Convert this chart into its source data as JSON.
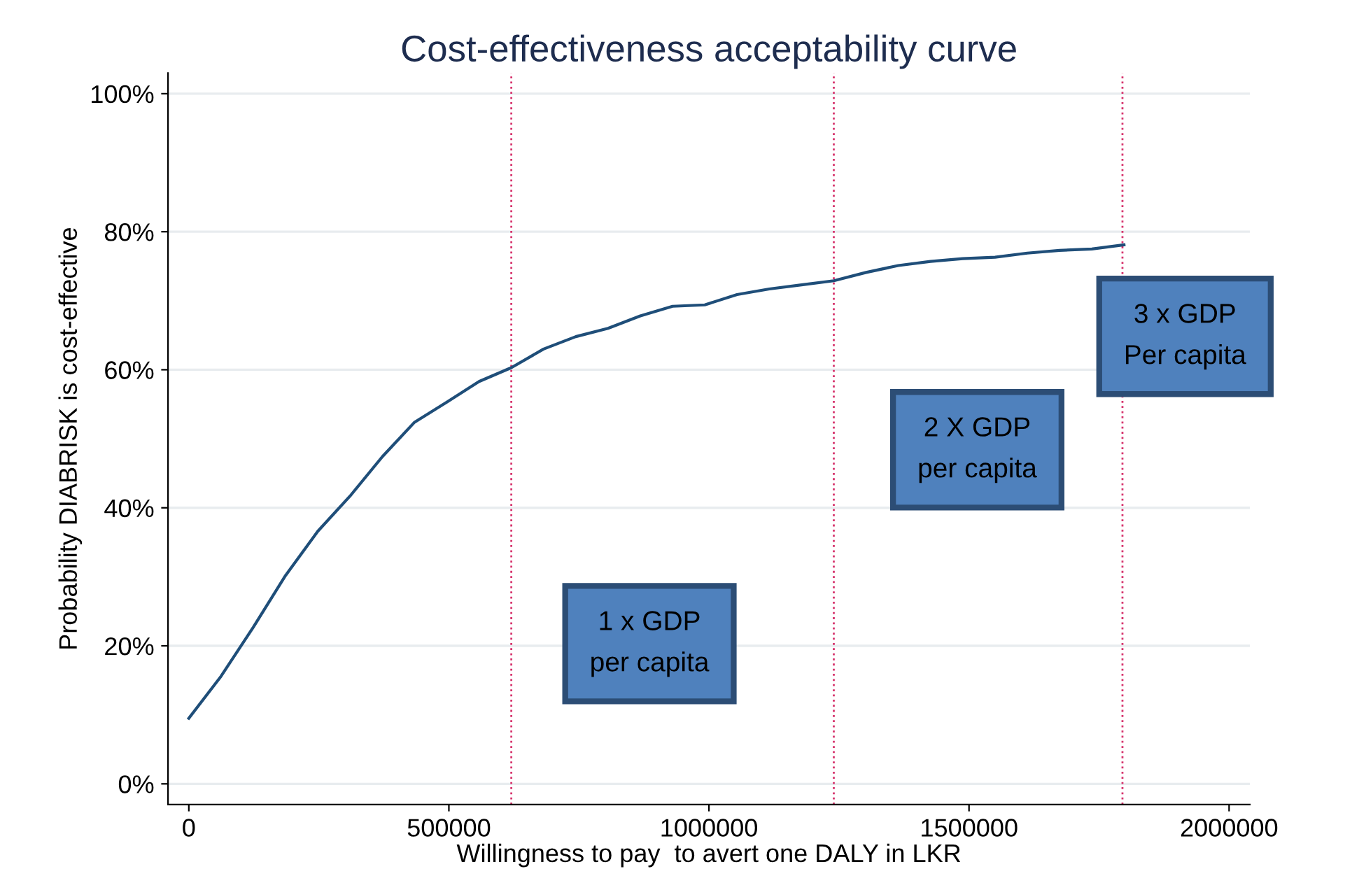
{
  "chart_data": {
    "type": "line",
    "title": "Cost-effectiveness acceptability curve",
    "xlabel": "Willingness to pay  to avert one DALY in LKR",
    "ylabel": "Probability DIABRISK is cost-effective",
    "x": [
      0,
      62000,
      124000,
      186000,
      248000,
      310000,
      372000,
      434000,
      496000,
      558000,
      620000,
      682000,
      744000,
      806000,
      868000,
      930000,
      992000,
      1054000,
      1116000,
      1178000,
      1240000,
      1302000,
      1364000,
      1426000,
      1488000,
      1550000,
      1612000,
      1674000,
      1736000,
      1798000
    ],
    "series": [
      {
        "color": "#1f4e79",
        "values": [
          9.5,
          15.6,
          22.7,
          30.2,
          36.6,
          41.7,
          47.4,
          52.4,
          55.3,
          58.3,
          60.3,
          63,
          64.8,
          66,
          67.8,
          69.2,
          69.4,
          70.9,
          71.7,
          72.3,
          72.9,
          74.1,
          75.1,
          75.7,
          76.1,
          76.3,
          76.9,
          77.3,
          77.5,
          78.1
        ]
      }
    ],
    "xlim": [
      -40000,
      2040000
    ],
    "ylim": [
      -3,
      103
    ],
    "xticks": [
      0,
      500000,
      1000000,
      1500000,
      2000000
    ],
    "yticks": [
      {
        "value": 0,
        "label": "0%"
      },
      {
        "value": 20,
        "label": "20%"
      },
      {
        "value": 40,
        "label": "40%"
      },
      {
        "value": 60,
        "label": "60%"
      },
      {
        "value": 80,
        "label": "80%"
      },
      {
        "value": 100,
        "label": "100%"
      }
    ],
    "grid": "y",
    "legend": false,
    "marker": "none",
    "line_style": "solid",
    "ref_lines": [
      {
        "axis": "x",
        "value": 620000,
        "color": "#d6336c",
        "line_style": "dotted"
      },
      {
        "axis": "x",
        "value": 1240000,
        "color": "#d6336c",
        "line_style": "dotted"
      },
      {
        "axis": "x",
        "value": 1795000,
        "color": "#d6336c",
        "line_style": "dotted"
      }
    ],
    "annotations": [
      "1 x GDP\nper capita",
      "2 X GDP\nper capita",
      "3 x GDP\nPer capita"
    ]
  }
}
